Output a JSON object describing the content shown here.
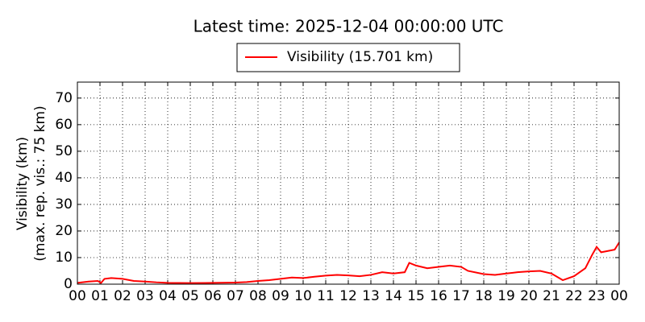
{
  "chart_data": {
    "type": "line",
    "title": "Latest time: 2025-12-04 00:00:00 UTC",
    "ylabel": [
      "Visibility (km)",
      "(max. rep. vis.: 75 km)"
    ],
    "x": [
      0,
      0.5,
      0.9,
      1.05,
      1.2,
      1.5,
      2,
      2.5,
      3,
      3.5,
      4,
      5,
      6,
      7,
      7.5,
      8,
      8.5,
      9,
      9.5,
      10,
      10.5,
      11,
      11.5,
      12,
      12.5,
      13,
      13.5,
      14,
      14.5,
      14.7,
      15,
      15.5,
      16,
      16.5,
      17,
      17.3,
      18,
      18.5,
      19,
      19.5,
      20,
      20.5,
      21,
      21.5,
      22,
      22.5,
      22.8,
      23,
      23.2,
      23.5,
      23.8,
      24
    ],
    "series": [
      {
        "name": "Visibility (15.701 km)",
        "color": "#ff0000",
        "values": [
          0.5,
          1,
          1.2,
          0.5,
          2,
          2.3,
          2,
          1.2,
          1,
          0.7,
          0.5,
          0.4,
          0.5,
          0.6,
          0.8,
          1.2,
          1.5,
          2,
          2.5,
          2.3,
          2.8,
          3.2,
          3.5,
          3.3,
          3,
          3.5,
          4.5,
          4,
          4.5,
          8,
          7,
          6,
          6.5,
          7,
          6.5,
          5,
          3.8,
          3.5,
          4,
          4.5,
          4.8,
          5,
          4,
          1.5,
          3,
          6,
          11,
          14,
          12,
          12.5,
          13,
          15.7
        ]
      }
    ],
    "xlim": [
      0,
      24
    ],
    "xticks": [
      {
        "value": 0,
        "label": "00"
      },
      {
        "value": 1,
        "label": "01"
      },
      {
        "value": 2,
        "label": "02"
      },
      {
        "value": 3,
        "label": "03"
      },
      {
        "value": 4,
        "label": "04"
      },
      {
        "value": 5,
        "label": "05"
      },
      {
        "value": 6,
        "label": "06"
      },
      {
        "value": 7,
        "label": "07"
      },
      {
        "value": 8,
        "label": "08"
      },
      {
        "value": 9,
        "label": "09"
      },
      {
        "value": 10,
        "label": "10"
      },
      {
        "value": 11,
        "label": "11"
      },
      {
        "value": 12,
        "label": "12"
      },
      {
        "value": 13,
        "label": "13"
      },
      {
        "value": 14,
        "label": "14"
      },
      {
        "value": 15,
        "label": "15"
      },
      {
        "value": 16,
        "label": "16"
      },
      {
        "value": 17,
        "label": "17"
      },
      {
        "value": 18,
        "label": "18"
      },
      {
        "value": 19,
        "label": "19"
      },
      {
        "value": 20,
        "label": "20"
      },
      {
        "value": 21,
        "label": "21"
      },
      {
        "value": 22,
        "label": "22"
      },
      {
        "value": 23,
        "label": "23"
      },
      {
        "value": 24,
        "label": "00"
      }
    ],
    "ylim": [
      0,
      76
    ],
    "yticks": [
      0,
      10,
      20,
      30,
      40,
      50,
      60,
      70
    ],
    "grid": true,
    "legend": "upper center"
  }
}
